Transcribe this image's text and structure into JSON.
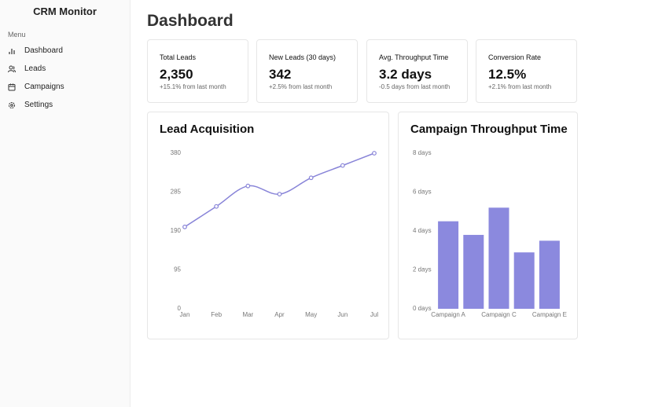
{
  "sidebar": {
    "title": "CRM Monitor",
    "section": "Menu",
    "nav": [
      "Dashboard",
      "Leads",
      "Campaigns",
      "Settings"
    ]
  },
  "header": {
    "title": "Dashboard"
  },
  "cards": [
    {
      "title": "Total Leads",
      "value": "2,350",
      "change": "+15.1% from last month"
    },
    {
      "title": "New Leads (30 days)",
      "value": "342",
      "change": "+2.5% from last month"
    },
    {
      "title": "Avg. Throughput Time",
      "value": "3.2 days",
      "change": "-0.5 days from last month"
    },
    {
      "title": "Conversion Rate",
      "value": "12.5%",
      "change": "+2.1% from last month"
    }
  ],
  "chart_data": [
    {
      "type": "line",
      "title": "Lead Acquisition",
      "color": "#8884d8",
      "categories": [
        "Jan",
        "Feb",
        "Mar",
        "Apr",
        "May",
        "Jun",
        "Jul"
      ],
      "values": [
        200,
        250,
        300,
        280,
        320,
        350,
        380
      ],
      "ylim": [
        0,
        380
      ],
      "yticks": [
        0,
        95,
        190,
        285,
        380
      ]
    },
    {
      "type": "bar",
      "title": "Campaign Throughput Time",
      "color": "#8b89de",
      "categories": [
        "Campaign A",
        null,
        "Campaign C",
        null,
        "Campaign E"
      ],
      "values": [
        4.5,
        3.8,
        5.2,
        2.9,
        3.5
      ],
      "ylim": [
        0,
        8
      ],
      "yticks": [
        {
          "value": 0,
          "label": "0 days"
        },
        {
          "value": 2,
          "label": "2 days"
        },
        {
          "value": 4,
          "label": "4 days"
        },
        {
          "value": 6,
          "label": "6 days"
        },
        {
          "value": 8,
          "label": "8 days"
        }
      ]
    }
  ]
}
